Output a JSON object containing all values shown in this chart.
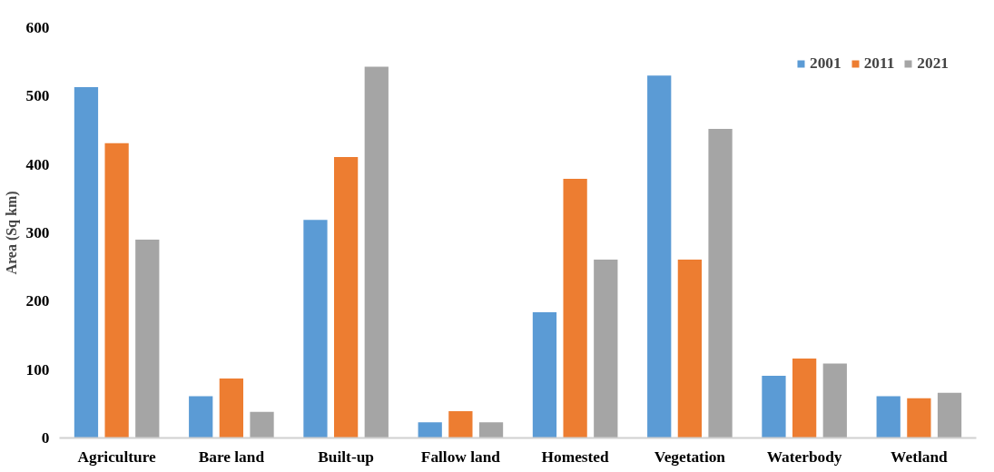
{
  "chart_data": {
    "type": "bar",
    "ylabel": "Area (Sq km)",
    "categories": [
      "Agriculture",
      "Bare land",
      "Built-up",
      "Fallow land",
      "Homested",
      "Vegetation",
      "Waterbody",
      "Wetland"
    ],
    "series": [
      {
        "name": "2001",
        "color": "#5b9bd5",
        "values": [
          513,
          61,
          319,
          23,
          184,
          530,
          91,
          61
        ]
      },
      {
        "name": "2011",
        "color": "#ed7d31",
        "values": [
          431,
          87,
          411,
          39,
          379,
          261,
          116,
          58
        ]
      },
      {
        "name": "2021",
        "color": "#a5a5a5",
        "values": [
          290,
          38,
          543,
          23,
          261,
          452,
          109,
          66
        ]
      }
    ],
    "ylim": [
      0,
      600
    ],
    "yticks": [
      0,
      100,
      200,
      300,
      400,
      500,
      600
    ],
    "grid": false,
    "legend": "top right"
  }
}
